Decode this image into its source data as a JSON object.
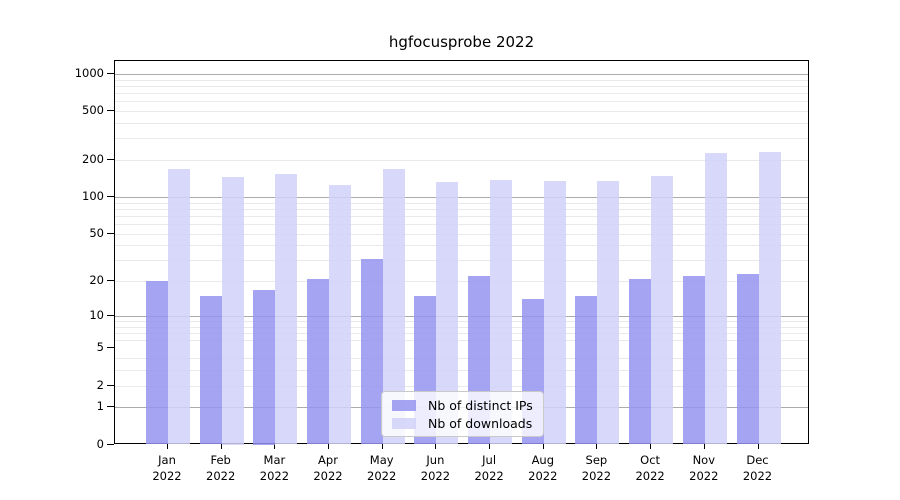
{
  "title": "hgfocusprobe 2022",
  "legend": {
    "items": [
      {
        "label": "Nb of distinct IPs",
        "series": "ips"
      },
      {
        "label": "Nb of downloads",
        "series": "downloads"
      }
    ],
    "position": "bottom-center"
  },
  "colors": {
    "bar_ips": "rgba(148,148,240,0.85)",
    "bar_downloads": "rgba(209,209,249,0.85)",
    "grid_major": "#ababab",
    "grid_minor": "#e9e9e9",
    "spine": "#000000",
    "text": "#000000"
  },
  "chart_data": {
    "type": "bar",
    "title": "hgfocusprobe 2022",
    "xlabel": "",
    "ylabel": "",
    "yscale": "log1p",
    "ylim": [
      0,
      1275
    ],
    "grid": true,
    "legend_position": "bottom-center",
    "yticks": [
      0,
      1,
      2,
      5,
      10,
      20,
      50,
      100,
      200,
      500,
      1000
    ],
    "minor_gridlines": [
      2,
      3,
      4,
      6,
      7,
      8,
      9,
      20,
      30,
      40,
      50,
      60,
      70,
      80,
      90,
      200,
      300,
      400,
      500,
      600,
      700,
      800,
      900
    ],
    "major_gridlines": [
      1,
      10,
      100,
      1000
    ],
    "categories": [
      "Jan 2022",
      "Feb 2022",
      "Mar 2022",
      "Apr 2022",
      "May 2022",
      "Jun 2022",
      "Jul 2022",
      "Aug 2022",
      "Sep 2022",
      "Oct 2022",
      "Nov 2022",
      "Dec 2022"
    ],
    "months": [
      {
        "month": "Jan",
        "year": "2022"
      },
      {
        "month": "Feb",
        "year": "2022"
      },
      {
        "month": "Mar",
        "year": "2022"
      },
      {
        "month": "Apr",
        "year": "2022"
      },
      {
        "month": "May",
        "year": "2022"
      },
      {
        "month": "Jun",
        "year": "2022"
      },
      {
        "month": "Jul",
        "year": "2022"
      },
      {
        "month": "Aug",
        "year": "2022"
      },
      {
        "month": "Sep",
        "year": "2022"
      },
      {
        "month": "Oct",
        "year": "2022"
      },
      {
        "month": "Nov",
        "year": "2022"
      },
      {
        "month": "Dec",
        "year": "2022"
      }
    ],
    "series": [
      {
        "name": "Nb of distinct IPs",
        "values": [
          20,
          15,
          17,
          21,
          31,
          15,
          22,
          14,
          15,
          21,
          22,
          23
        ]
      },
      {
        "name": "Nb of downloads",
        "values": [
          168,
          147,
          155,
          125,
          170,
          133,
          137,
          134,
          135,
          149,
          230,
          233
        ]
      }
    ]
  }
}
